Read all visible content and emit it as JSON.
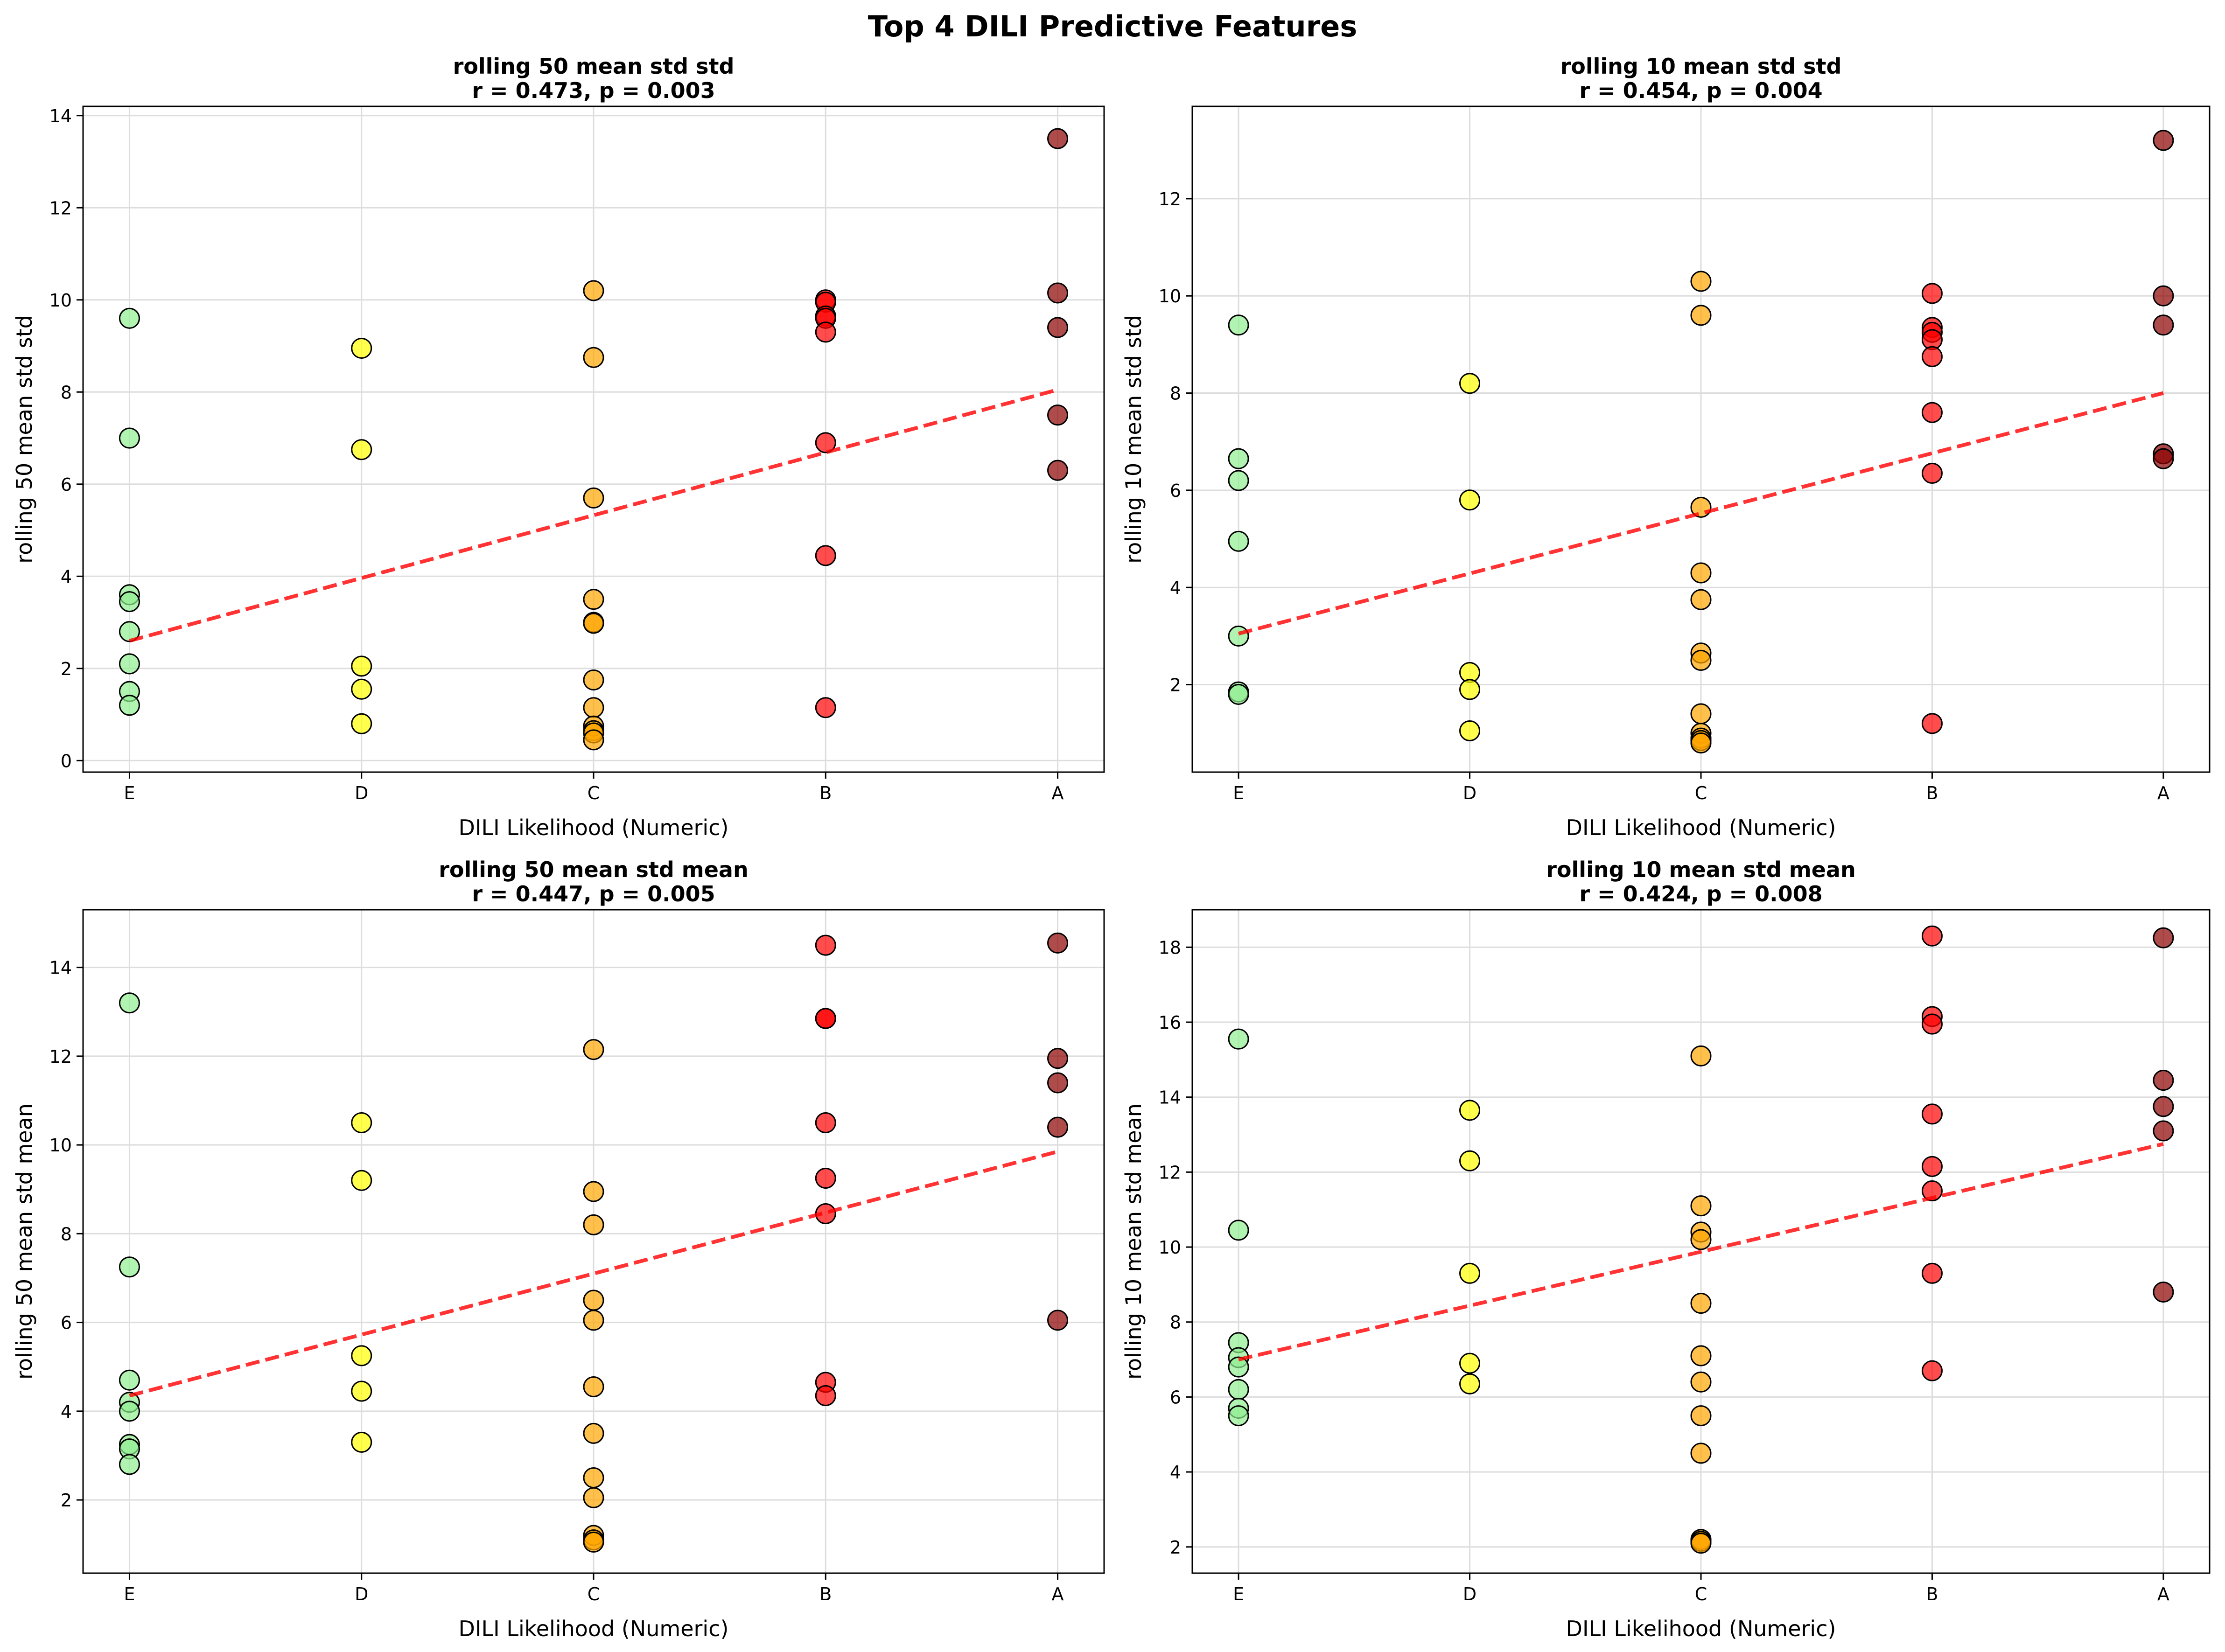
{
  "title": "Top 4 DILI Predictive Features",
  "colors": {
    "E": "#90EE90",
    "D": "#FFFF00",
    "C": "#FFA500",
    "B": "#FF0000",
    "A": "#8B0000",
    "trend": "#FF0000",
    "grid": "#DDDDDD"
  },
  "chart_data": [
    {
      "type": "scatter",
      "title": "rolling 50 mean std std",
      "subtitle": "r = 0.473, p = 0.003",
      "xlabel": "DILI Likelihood (Numeric)",
      "ylabel": "rolling 50 mean std std",
      "categories": [
        "E",
        "D",
        "C",
        "B",
        "A"
      ],
      "xlim": [
        0.8,
        5.2
      ],
      "ylim": [
        -0.25,
        14.2
      ],
      "yticks": [
        0,
        2,
        4,
        6,
        8,
        10,
        12,
        14
      ],
      "trend": [
        [
          1,
          2.6
        ],
        [
          5,
          8.05
        ]
      ],
      "grid": true,
      "points": {
        "E": [
          9.6,
          7.0,
          3.6,
          3.45,
          2.8,
          2.1,
          1.5,
          1.2
        ],
        "D": [
          8.95,
          6.75,
          2.05,
          1.55,
          0.8
        ],
        "C": [
          10.2,
          8.75,
          5.7,
          3.5,
          3.0,
          2.98,
          1.75,
          1.15,
          0.75,
          0.65,
          0.6,
          0.45
        ],
        "B": [
          10.0,
          9.95,
          9.65,
          9.6,
          9.3,
          6.9,
          4.45,
          1.15
        ],
        "A": [
          13.5,
          10.15,
          9.4,
          7.5,
          6.3
        ]
      }
    },
    {
      "type": "scatter",
      "title": "rolling 10 mean std std",
      "subtitle": "r = 0.454, p = 0.004",
      "xlabel": "DILI Likelihood (Numeric)",
      "ylabel": "rolling 10 mean std std",
      "categories": [
        "E",
        "D",
        "C",
        "B",
        "A"
      ],
      "xlim": [
        0.8,
        5.2
      ],
      "ylim": [
        0.2,
        13.9
      ],
      "yticks": [
        2,
        4,
        6,
        8,
        10,
        12
      ],
      "trend": [
        [
          1,
          3.05
        ],
        [
          5,
          8.0
        ]
      ],
      "grid": true,
      "points": {
        "E": [
          9.4,
          6.65,
          6.2,
          4.95,
          3.0,
          1.85,
          1.8
        ],
        "D": [
          8.2,
          5.8,
          2.25,
          1.9,
          1.05
        ],
        "C": [
          10.3,
          9.6,
          5.65,
          4.3,
          3.75,
          2.65,
          2.5,
          1.4,
          1.0,
          0.9,
          0.85,
          0.8
        ],
        "B": [
          10.05,
          9.35,
          9.25,
          9.1,
          8.75,
          7.6,
          6.35,
          1.2
        ],
        "A": [
          13.2,
          10.0,
          9.4,
          6.75,
          6.65
        ]
      }
    },
    {
      "type": "scatter",
      "title": "rolling 50 mean std mean",
      "subtitle": "r = 0.447, p = 0.005",
      "xlabel": "DILI Likelihood (Numeric)",
      "ylabel": "rolling 50 mean std mean",
      "categories": [
        "E",
        "D",
        "C",
        "B",
        "A"
      ],
      "xlim": [
        0.8,
        5.2
      ],
      "ylim": [
        0.35,
        15.3
      ],
      "yticks": [
        2,
        4,
        6,
        8,
        10,
        12,
        14
      ],
      "trend": [
        [
          1,
          4.35
        ],
        [
          5,
          9.85
        ]
      ],
      "grid": true,
      "points": {
        "E": [
          13.2,
          7.25,
          4.7,
          4.2,
          4.0,
          3.25,
          3.15,
          2.8
        ],
        "D": [
          10.5,
          9.2,
          5.25,
          4.45,
          3.3
        ],
        "C": [
          12.15,
          8.95,
          8.2,
          6.5,
          6.05,
          4.55,
          3.5,
          2.5,
          2.05,
          1.2,
          1.1,
          1.05
        ],
        "B": [
          14.5,
          12.85,
          12.85,
          10.5,
          9.25,
          8.45,
          4.65,
          4.35
        ],
        "A": [
          14.55,
          11.95,
          11.4,
          10.4,
          6.05
        ]
      }
    },
    {
      "type": "scatter",
      "title": "rolling 10 mean std mean",
      "subtitle": "r = 0.424, p = 0.008",
      "xlabel": "DILI Likelihood (Numeric)",
      "ylabel": "rolling 10 mean std mean",
      "categories": [
        "E",
        "D",
        "C",
        "B",
        "A"
      ],
      "xlim": [
        0.8,
        5.2
      ],
      "ylim": [
        1.3,
        19.0
      ],
      "yticks": [
        2,
        4,
        6,
        8,
        10,
        12,
        14,
        16,
        18
      ],
      "trend": [
        [
          1,
          7.0
        ],
        [
          5,
          12.75
        ]
      ],
      "grid": true,
      "points": {
        "E": [
          15.55,
          10.45,
          7.45,
          7.05,
          6.8,
          6.2,
          5.7,
          5.5
        ],
        "D": [
          13.65,
          12.3,
          9.3,
          6.9,
          6.35
        ],
        "C": [
          15.1,
          11.1,
          10.4,
          10.2,
          8.5,
          7.1,
          6.4,
          5.5,
          4.5,
          2.2,
          2.15,
          2.1
        ],
        "B": [
          18.3,
          16.15,
          15.95,
          13.55,
          12.15,
          11.5,
          9.3,
          6.7
        ],
        "A": [
          18.25,
          14.45,
          13.75,
          13.1,
          8.8
        ]
      }
    }
  ]
}
